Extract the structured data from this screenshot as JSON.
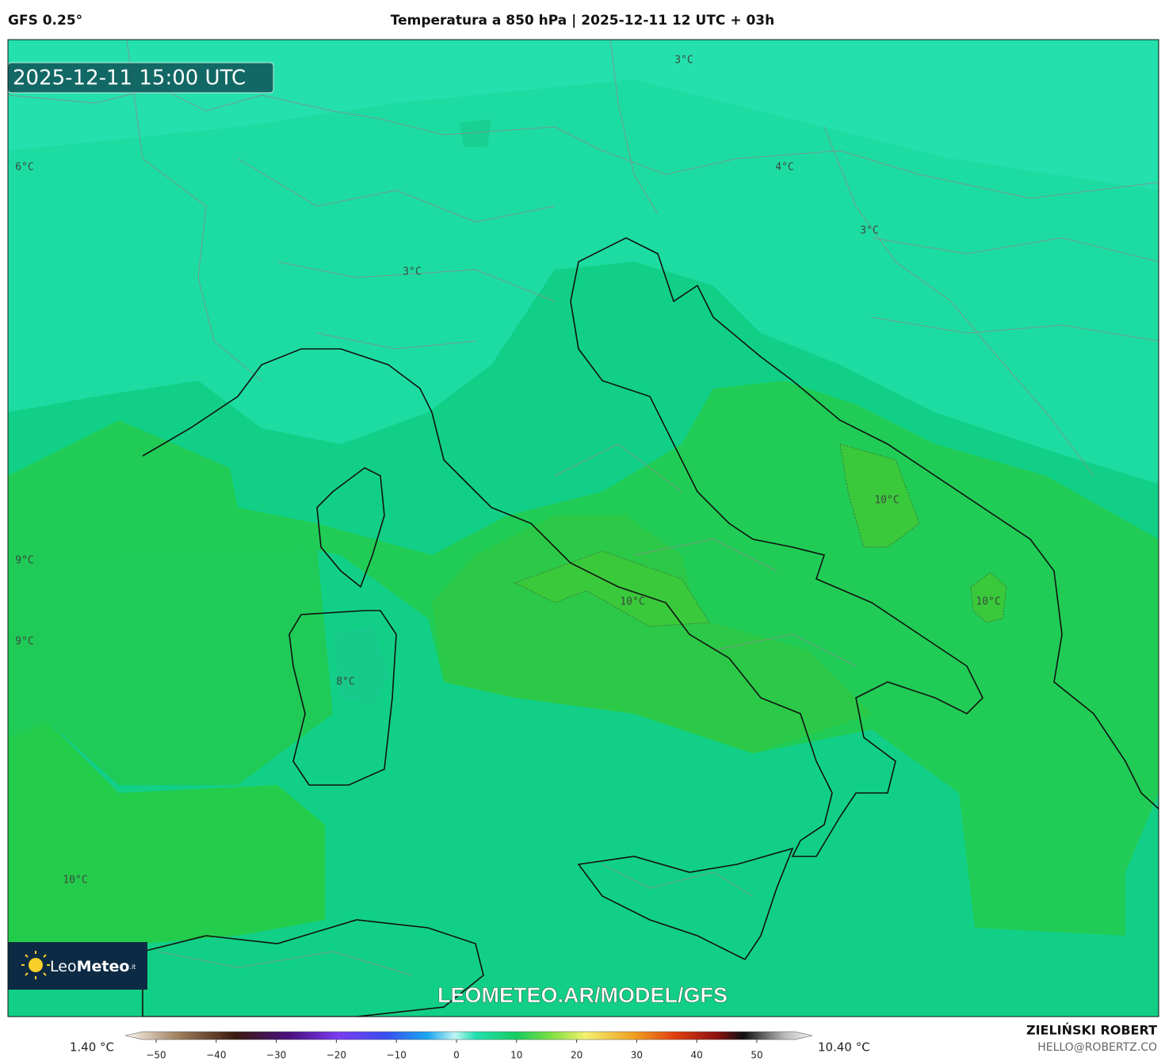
{
  "header": {
    "model": "GFS 0.25°",
    "title": "Temperatura a 850 hPa | 2025-12-11 12 UTC + 03h"
  },
  "map": {
    "valid_time": "2025-12-11 15:00 UTC",
    "contour_labels": [
      "3°C",
      "6°C",
      "4°C",
      "3°C",
      "3°C",
      "10°C",
      "10°C",
      "10°C",
      "9°C",
      "9°C",
      "8°C",
      "10°C"
    ],
    "logo": {
      "light": "Leo",
      "bold": "Meteo",
      "suffix": ".it"
    },
    "watermark": "LEOMETEO.AR/MODEL/GFS"
  },
  "legend": {
    "min_label": "1.40 °C",
    "max_label": "10.40 °C",
    "ticks": [
      {
        "value": -50,
        "label": "−50"
      },
      {
        "value": -40,
        "label": "−40"
      },
      {
        "value": -30,
        "label": "−30"
      },
      {
        "value": -20,
        "label": "−20"
      },
      {
        "value": -10,
        "label": "−10"
      },
      0,
      10,
      20,
      30,
      40,
      50
    ]
  },
  "footer": {
    "author": "ZIELIŃSKI ROBERT",
    "email": "HELLO@ROBERTZ.CO"
  }
}
